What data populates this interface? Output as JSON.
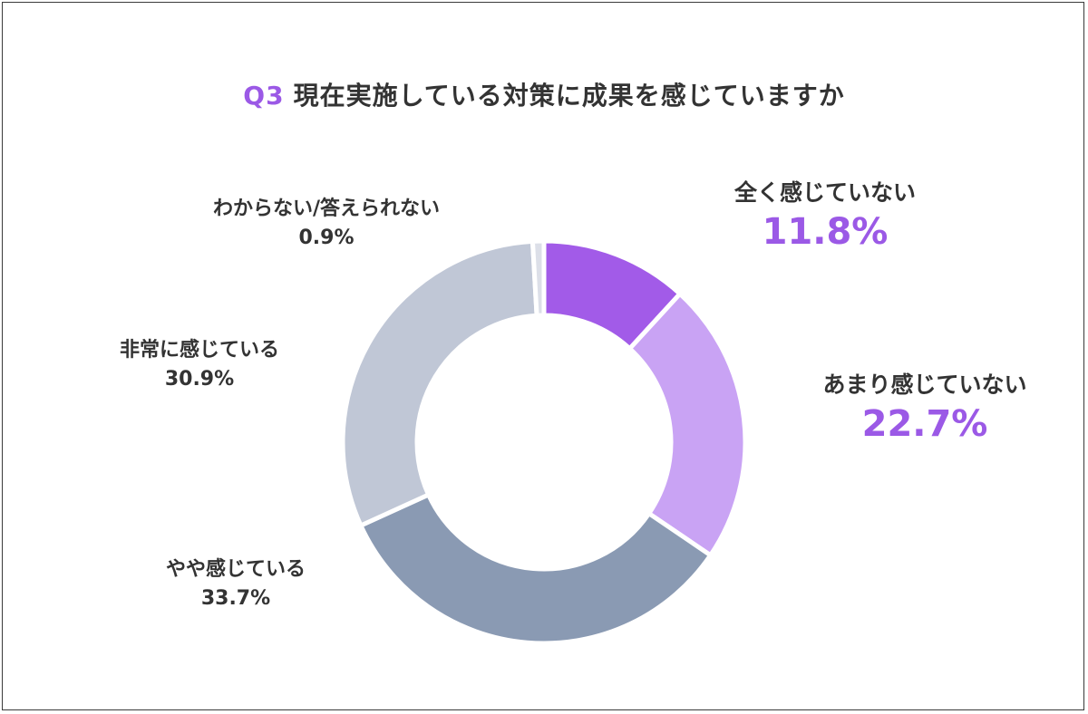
{
  "title": {
    "prefix": "Q3",
    "text": "現在実施している対策に成果を感じていますか"
  },
  "chart_data": {
    "type": "pie",
    "style": "donut",
    "unit": "%",
    "slices": [
      {
        "label": "全く感じていない",
        "value": 11.8,
        "display": "11.8%",
        "color": "#a25be8",
        "highlight": true
      },
      {
        "label": "あまり感じていない",
        "value": 22.7,
        "display": "22.7%",
        "color": "#c9a3f4",
        "highlight": true
      },
      {
        "label": "やや感じている",
        "value": 33.7,
        "display": "33.7%",
        "color": "#8a9ab3",
        "highlight": false
      },
      {
        "label": "非常に感じている",
        "value": 30.9,
        "display": "30.9%",
        "color": "#c0c7d6",
        "highlight": false
      },
      {
        "label": "わからない/答えられない",
        "value": 0.9,
        "display": "0.9%",
        "color": "#dcdfe8",
        "highlight": false
      }
    ]
  }
}
